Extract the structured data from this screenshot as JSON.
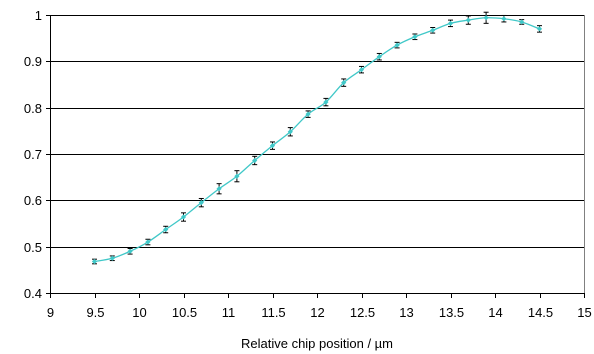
{
  "chart_data": {
    "type": "line",
    "title": "",
    "xlabel": "Relative chip position / µm",
    "ylabel": "",
    "xlim": [
      9,
      15
    ],
    "ylim": [
      0.4,
      1.0
    ],
    "xticks": [
      "9",
      "9.5",
      "10",
      "10.5",
      "11",
      "11.5",
      "12",
      "12.5",
      "13",
      "13.5",
      "14",
      "14.5",
      "15"
    ],
    "yticks": [
      "0.4",
      "0.5",
      "0.6",
      "0.7",
      "0.8",
      "0.9",
      "1"
    ],
    "grid": "horizontal",
    "legend": "none",
    "line_color": "#40c8c8",
    "marker_color": "#40c8c8",
    "errorbar_color": "#000000",
    "series": [
      {
        "x": [
          9.5,
          9.7,
          9.9,
          10.1,
          10.3,
          10.5,
          10.7,
          10.9,
          11.1,
          11.3,
          11.5,
          11.7,
          11.9,
          12.1,
          12.3,
          12.5,
          12.7,
          12.9,
          13.1,
          13.3,
          13.5,
          13.7,
          13.9,
          14.1,
          14.3,
          14.5
        ],
        "y": [
          0.468,
          0.475,
          0.49,
          0.51,
          0.537,
          0.564,
          0.595,
          0.625,
          0.652,
          0.686,
          0.718,
          0.748,
          0.786,
          0.812,
          0.854,
          0.882,
          0.91,
          0.935,
          0.953,
          0.967,
          0.982,
          0.989,
          0.994,
          0.992,
          0.985,
          0.97
        ],
        "err": [
          0.005,
          0.005,
          0.006,
          0.006,
          0.007,
          0.009,
          0.009,
          0.011,
          0.012,
          0.009,
          0.008,
          0.009,
          0.007,
          0.008,
          0.008,
          0.007,
          0.007,
          0.006,
          0.006,
          0.006,
          0.007,
          0.009,
          0.012,
          0.007,
          0.005,
          0.007
        ]
      }
    ]
  }
}
